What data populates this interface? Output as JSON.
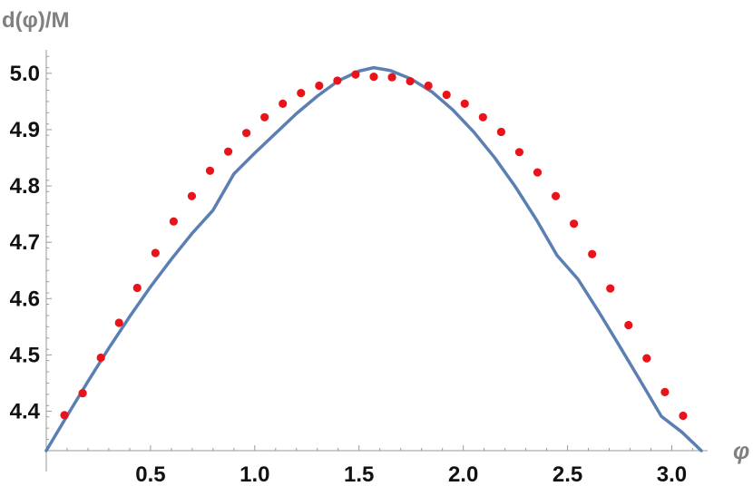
{
  "chart_data": {
    "type": "line",
    "title": "",
    "xlabel": "φ",
    "ylabel": "d(φ)/M",
    "xlim": [
      0.0,
      3.2
    ],
    "ylim": [
      4.33,
      5.04
    ],
    "grid": false,
    "x_ticks": [
      {
        "value": 0.5,
        "label": "0.5"
      },
      {
        "value": 1.0,
        "label": "1.0"
      },
      {
        "value": 1.5,
        "label": "1.5"
      },
      {
        "value": 2.0,
        "label": "2.0"
      },
      {
        "value": 2.5,
        "label": "2.5"
      },
      {
        "value": 3.0,
        "label": "3.0"
      }
    ],
    "y_ticks": [
      {
        "value": 4.4,
        "label": "4.4"
      },
      {
        "value": 4.5,
        "label": "4.5"
      },
      {
        "value": 4.6,
        "label": "4.6"
      },
      {
        "value": 4.7,
        "label": "4.7"
      },
      {
        "value": 4.8,
        "label": "4.8"
      },
      {
        "value": 4.9,
        "label": "4.9"
      },
      {
        "value": 5.0,
        "label": "5.0"
      }
    ],
    "series": [
      {
        "kind": "line",
        "color": "#5b7fb3",
        "x": [
          0.0,
          0.1,
          0.2,
          0.3,
          0.4,
          0.5,
          0.6,
          0.7,
          0.8,
          0.9,
          1.0,
          1.1,
          1.2,
          1.3,
          1.4,
          1.5,
          1.5708,
          1.65,
          1.75,
          1.85,
          1.95,
          2.05,
          2.15,
          2.25,
          2.35,
          2.45,
          2.55,
          2.65,
          2.75,
          2.85,
          2.95,
          3.05,
          3.1416
        ],
        "y": [
          4.33,
          4.392,
          4.453,
          4.512,
          4.568,
          4.621,
          4.67,
          4.716,
          4.757,
          4.8215,
          4.8585,
          4.8935,
          4.9285,
          4.9595,
          4.9865,
          5.004,
          5.01,
          5.005,
          4.99,
          4.967,
          4.935,
          4.896,
          4.8505,
          4.7985,
          4.7405,
          4.6765,
          4.6345,
          4.5765,
          4.5155,
          4.4535,
          4.391,
          4.3625,
          4.33
        ]
      },
      {
        "kind": "scatter",
        "color": "#e8141a",
        "x": [
          0.0873,
          0.1745,
          0.2618,
          0.3491,
          0.4363,
          0.5236,
          0.6109,
          0.6981,
          0.7854,
          0.8727,
          0.9599,
          1.0472,
          1.1345,
          1.2217,
          1.309,
          1.3963,
          1.4835,
          1.5708,
          1.6581,
          1.7453,
          1.8326,
          1.9199,
          2.0071,
          2.0944,
          2.1817,
          2.2689,
          2.3562,
          2.4435,
          2.5307,
          2.618,
          2.7053,
          2.7925,
          2.8798,
          2.9671,
          3.0543
        ],
        "y": [
          4.393,
          4.432,
          4.495,
          4.557,
          4.619,
          4.681,
          4.737,
          4.782,
          4.827,
          4.861,
          4.894,
          4.922,
          4.946,
          4.965,
          4.978,
          4.987,
          4.998,
          4.994,
          4.993,
          4.986,
          4.978,
          4.962,
          4.946,
          4.922,
          4.896,
          4.86,
          4.824,
          4.782,
          4.733,
          4.679,
          4.618,
          4.553,
          4.494,
          4.434,
          4.392
        ]
      }
    ]
  }
}
